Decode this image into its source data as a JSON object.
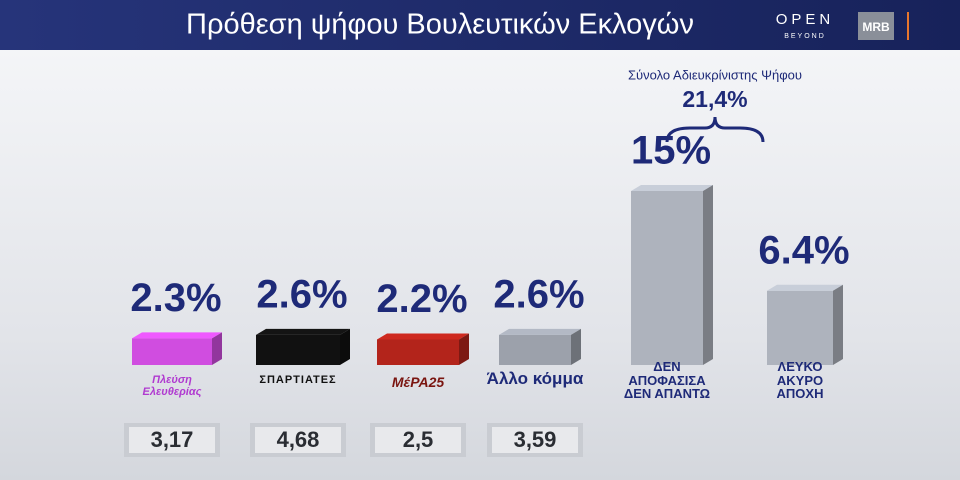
{
  "chart_data": {
    "type": "bar3d",
    "title": "Πρόθεση ψήφου Βουλευτικών Εκλογών",
    "categories": [
      "Πλεύση Ελευθερίας",
      "ΣΠΑΡΤΙΑΤΕΣ",
      "ΜέΡΑ25",
      "Άλλο κόμμα",
      "ΔΕΝ ΑΠΟΦΑΣΙΣΑ ΔΕΝ ΑΠΑΝΤΩ",
      "ΛΕΥΚΟ ΑΚΥΡΟ ΑΠΟΧΗ"
    ],
    "values": [
      2.3,
      2.6,
      2.2,
      2.6,
      15,
      6.4
    ],
    "value_labels": [
      "2.3%",
      "2.6%",
      "2.2%",
      "2.6%",
      "15%",
      "6.4%"
    ],
    "colors": [
      "#d04de0",
      "#111111",
      "#b3241b",
      "#9ca1ab",
      "#aeb3bd",
      "#aeb3bd"
    ],
    "previous_values": [
      3.17,
      4.68,
      2.5,
      3.59
    ],
    "previous_labels": [
      "3,17",
      "4,68",
      "2,5",
      "3,59"
    ],
    "annotation": {
      "text": "Σύνολο Αδιευκρίνιστης Ψήφου",
      "value": 21.4,
      "label": "21,4%"
    }
  },
  "branding": {
    "logo": "OPEN",
    "tagline": "BEYOND",
    "partner": "MRB"
  }
}
